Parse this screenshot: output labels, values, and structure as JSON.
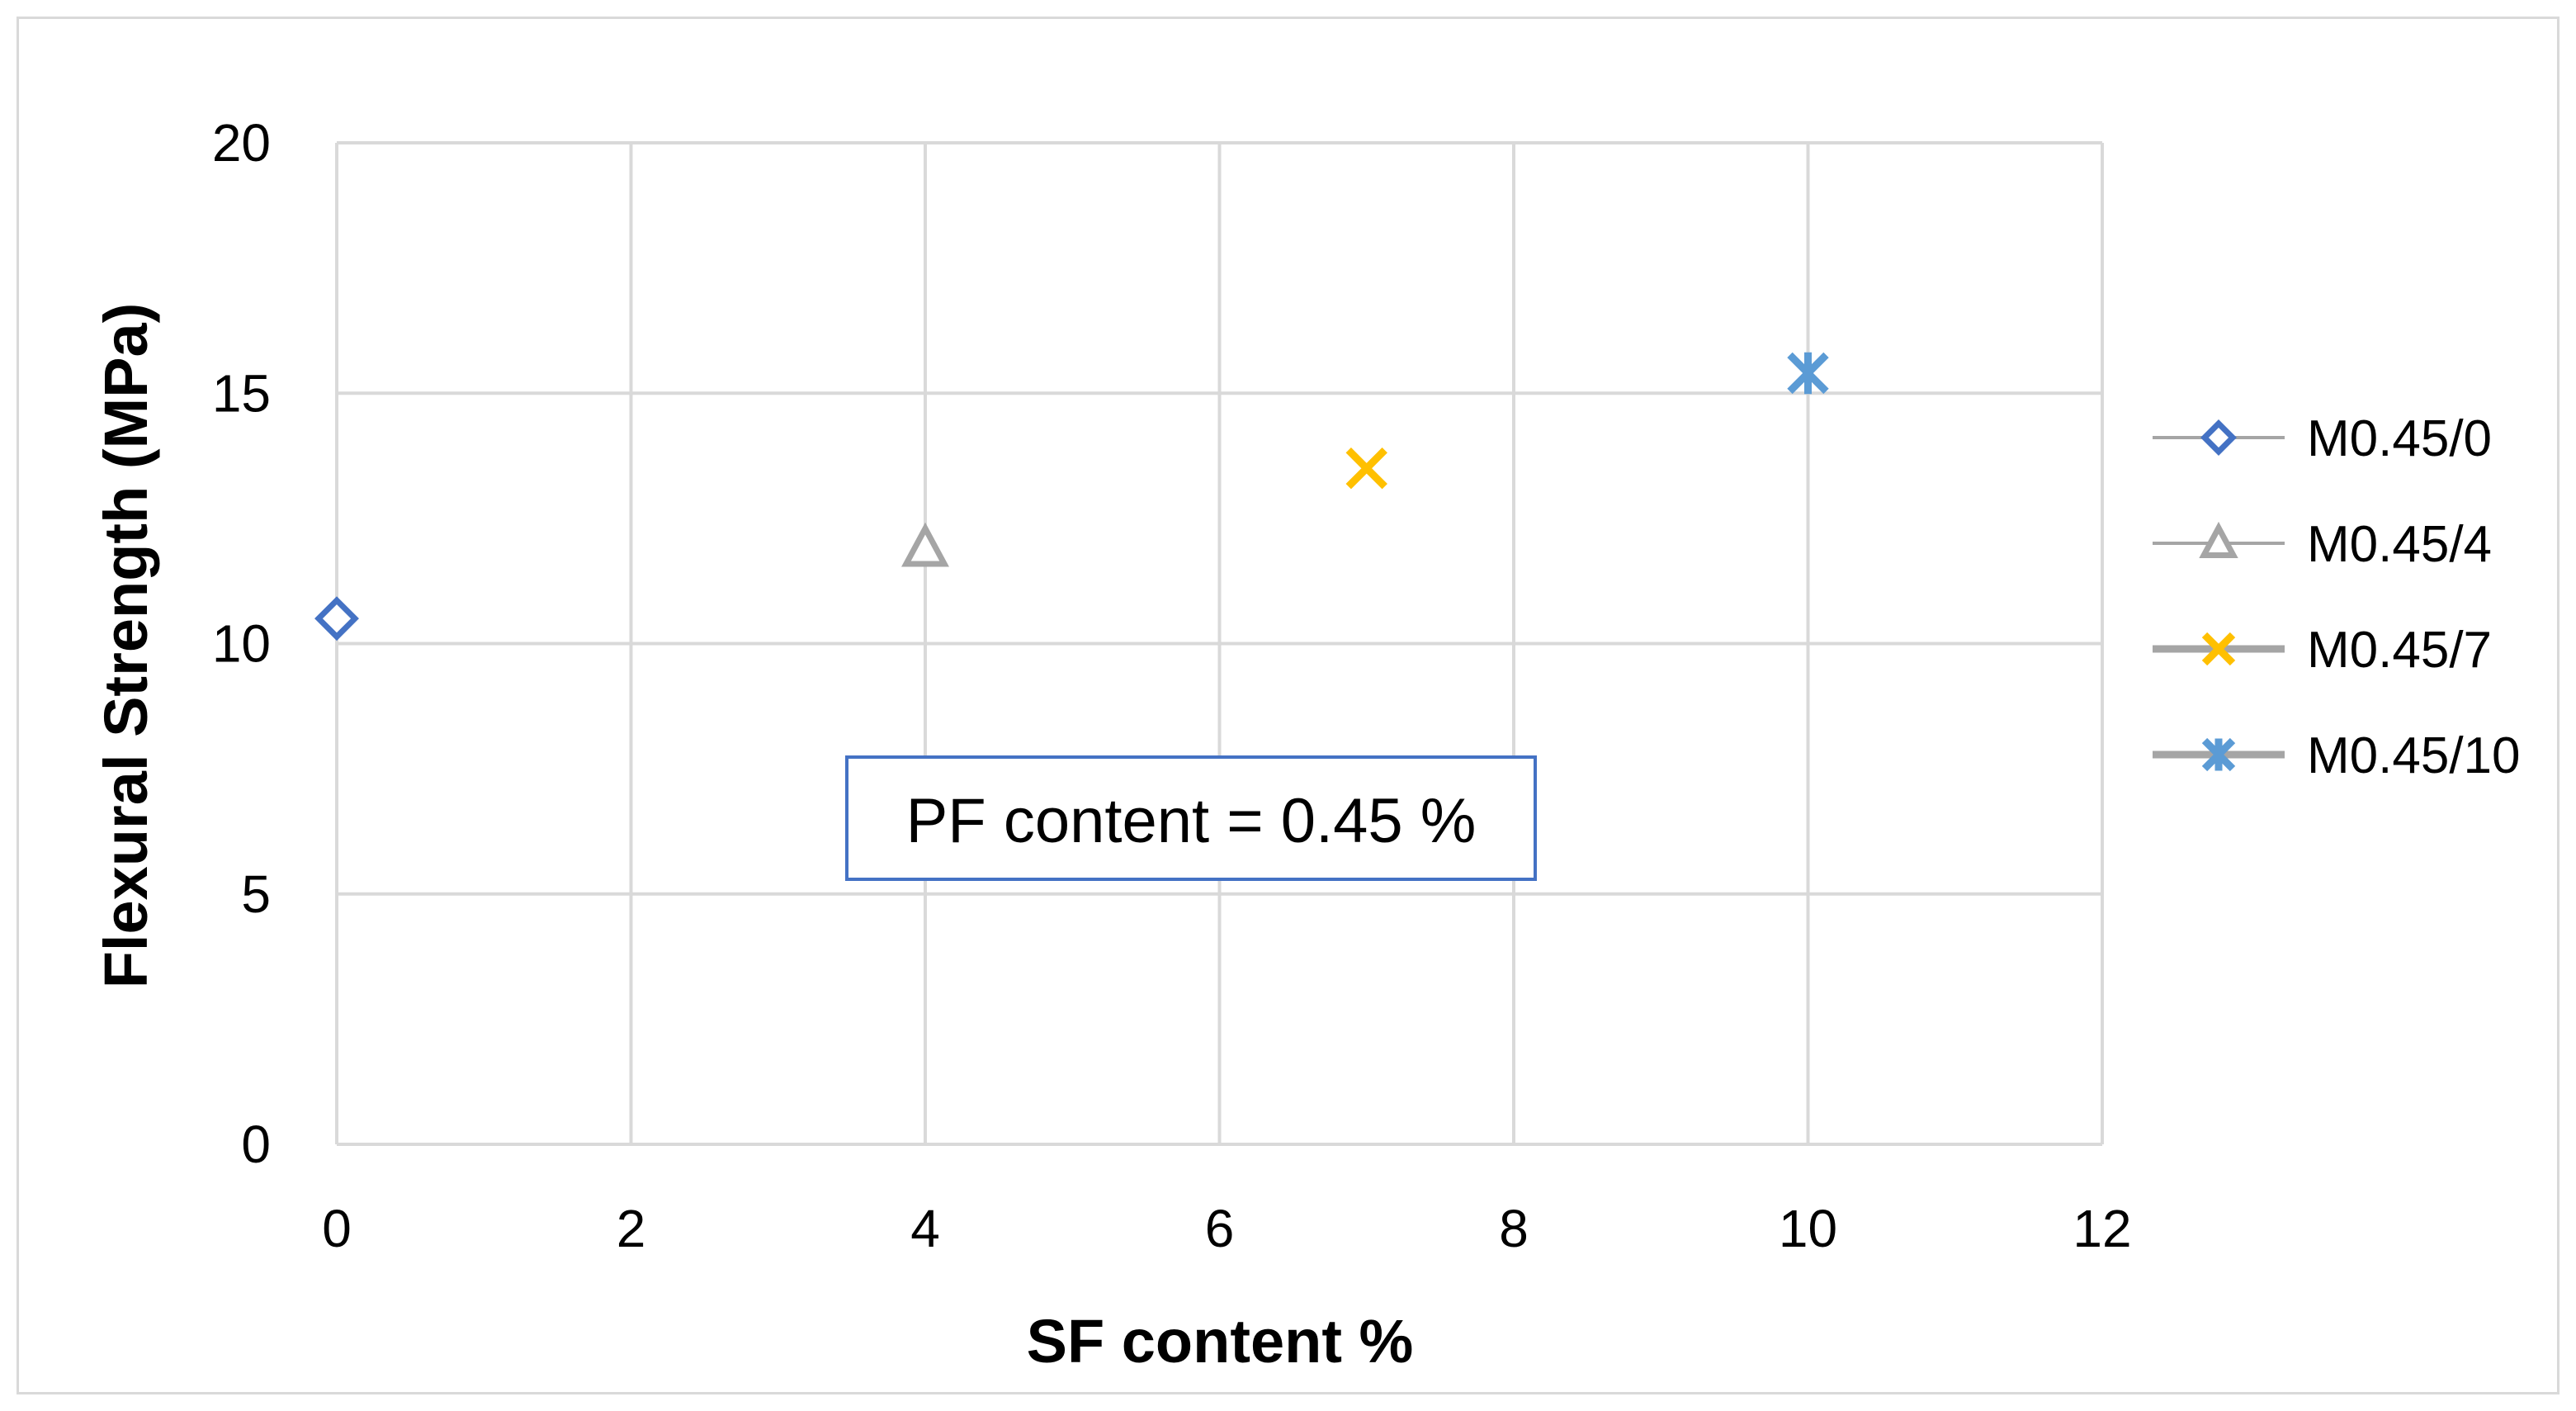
{
  "chart_data": {
    "type": "scatter",
    "title": "",
    "xlabel": "SF content %",
    "ylabel": "Flexural Strength (MPa)",
    "xlim": [
      0,
      12
    ],
    "ylim": [
      0,
      20
    ],
    "x_ticks": [
      0,
      2,
      4,
      6,
      8,
      10,
      12
    ],
    "y_ticks": [
      0,
      5,
      10,
      15,
      20
    ],
    "grid": true,
    "legend_position": "right",
    "annotation": "PF content = 0.45 %",
    "series": [
      {
        "name": "M0.45/0",
        "marker": "diamond",
        "color": "#4472c4",
        "x": [
          0
        ],
        "y": [
          10.5
        ]
      },
      {
        "name": "M0.45/4",
        "marker": "triangle",
        "color": "#a5a5a5",
        "x": [
          4
        ],
        "y": [
          11.9
        ]
      },
      {
        "name": "M0.45/7",
        "marker": "x",
        "color": "#ffc000",
        "x": [
          7
        ],
        "y": [
          13.5
        ]
      },
      {
        "name": "M0.45/10",
        "marker": "star",
        "color": "#5b9bd5",
        "x": [
          10
        ],
        "y": [
          15.4
        ]
      }
    ],
    "colors": {
      "grid": "#d9d9d9",
      "annotation_border": "#4472c4",
      "legend_line": "#a5a5a5"
    }
  }
}
